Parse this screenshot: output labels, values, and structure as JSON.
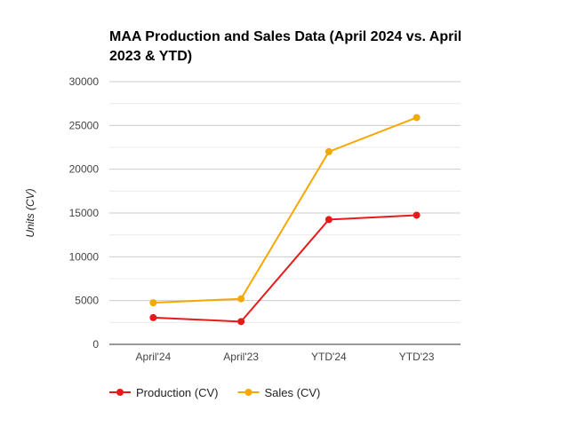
{
  "chart_data": {
    "type": "line",
    "title": "MAA Production and Sales Data (April 2024 vs. April 2023 & YTD)",
    "xlabel": "",
    "ylabel": "Units (CV)",
    "categories": [
      "April'24",
      "April'23",
      "YTD'24",
      "YTD'23"
    ],
    "ylim": [
      0,
      30000
    ],
    "yticks": [
      0,
      5000,
      10000,
      15000,
      20000,
      25000,
      30000
    ],
    "grid": true,
    "legend_position": "bottom-left",
    "series": [
      {
        "name": "Production (CV)",
        "color": "#e8191b",
        "values": [
          3050,
          2600,
          14250,
          14750
        ]
      },
      {
        "name": "Sales (CV)",
        "color": "#f5a800",
        "values": [
          4750,
          5200,
          22000,
          25900
        ]
      }
    ]
  }
}
